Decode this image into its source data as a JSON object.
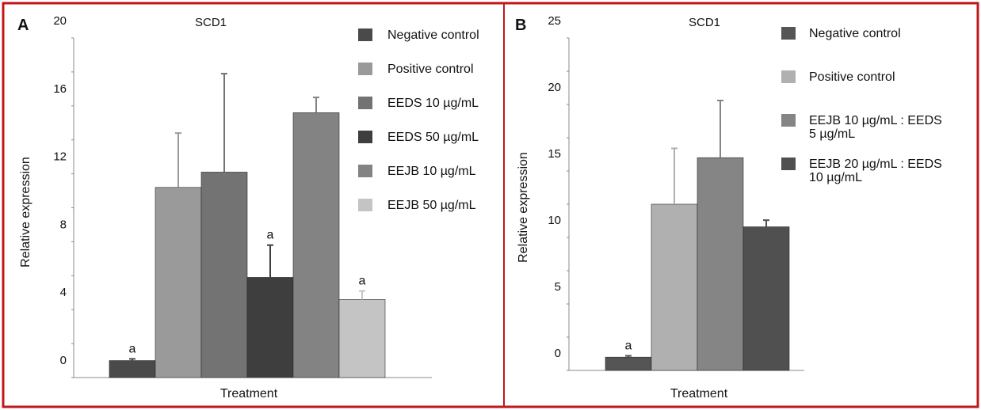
{
  "chart_data": [
    {
      "panel_label": "A",
      "type": "bar",
      "title": "SCD1",
      "xlabel": "Treatment",
      "ylabel": "Relative expression",
      "ylim": [
        0,
        20
      ],
      "yticks": [
        "0",
        "4",
        "8",
        "12",
        "16",
        "20"
      ],
      "grid": false,
      "legend_position": "right",
      "categories": [
        "Negative control",
        "Positive control",
        "EEDS 10 µg/mL",
        "EEDS 50 µg/mL",
        "EEJB 10 µg/mL",
        "EEJB 50 µg/mL"
      ],
      "values": [
        1.0,
        11.2,
        12.1,
        5.9,
        15.6,
        4.6
      ],
      "errors": [
        0.1,
        3.2,
        5.8,
        1.9,
        0.9,
        0.5
      ],
      "annotations": [
        "a",
        "",
        "",
        "a",
        "",
        "a"
      ],
      "colors": [
        "#4a4a4a",
        "#9a9a9a",
        "#737373",
        "#3e3e3e",
        "#838383",
        "#c4c4c4"
      ]
    },
    {
      "panel_label": "B",
      "type": "bar",
      "title": "SCD1",
      "xlabel": "Treatment",
      "ylabel": "Relative expression",
      "ylim": [
        0,
        25
      ],
      "yticks": [
        "0",
        "5",
        "10",
        "15",
        "20",
        "25"
      ],
      "grid": false,
      "legend_position": "right",
      "categories": [
        "Negative control",
        "Positive control",
        "EEJB 10 µg/mL : EEDS 5 µg/mL",
        "EEJB 20 µg/mL : EEDS 10 µg/mL"
      ],
      "legend_lines": [
        [
          "Negative control"
        ],
        [
          "Positive control"
        ],
        [
          "EEJB 10 µg/mL : EEDS",
          "5 µg/mL"
        ],
        [
          "EEJB 20 µg/mL : EEDS",
          "10 µg/mL"
        ]
      ],
      "values": [
        1.0,
        12.5,
        16.0,
        10.8
      ],
      "errors": [
        0.1,
        4.2,
        4.3,
        0.5
      ],
      "annotations": [
        "a",
        "",
        "",
        ""
      ],
      "colors": [
        "#555555",
        "#b0b0b0",
        "#858585",
        "#505050"
      ]
    }
  ],
  "colors": {
    "frame": "#c0171c",
    "axis": "#888888"
  }
}
